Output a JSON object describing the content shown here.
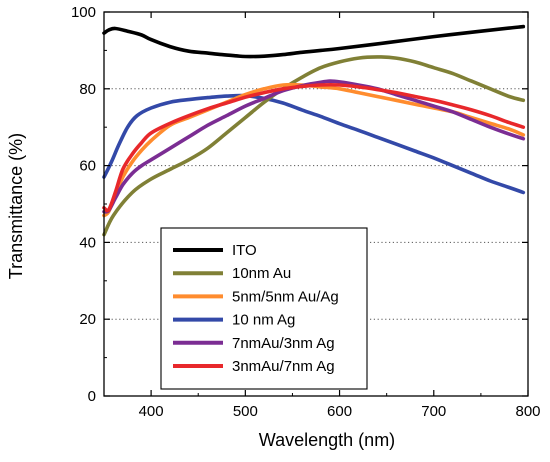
{
  "chart_data": {
    "type": "line",
    "title": "",
    "xlabel": "Wavelength (nm)",
    "ylabel": "Transmittance (%)",
    "xlim": [
      350,
      800
    ],
    "ylim": [
      0,
      100
    ],
    "x_ticks": [
      400,
      500,
      600,
      700,
      800
    ],
    "y_ticks": [
      0,
      20,
      40,
      60,
      80,
      100
    ],
    "grid": "dotted horizontal at 20, 40, 60, 80",
    "legend_position": "lower-left inside",
    "series": [
      {
        "name": "ITO",
        "color": "#000000",
        "x": [
          350,
          355,
          362,
          375,
          390,
          400,
          420,
          440,
          460,
          475,
          490,
          500,
          520,
          540,
          560,
          580,
          600,
          650,
          700,
          750,
          780,
          795
        ],
        "y": [
          94.5,
          95.3,
          95.7,
          95.0,
          94.0,
          92.8,
          91.0,
          89.8,
          89.3,
          88.9,
          88.6,
          88.4,
          88.5,
          88.9,
          89.5,
          90.0,
          90.5,
          92.0,
          93.6,
          95.0,
          95.8,
          96.2
        ]
      },
      {
        "name": "10nm Au",
        "color": "#808036",
        "x": [
          350,
          360,
          380,
          400,
          420,
          440,
          460,
          480,
          500,
          520,
          540,
          560,
          580,
          600,
          620,
          640,
          660,
          680,
          700,
          720,
          740,
          760,
          780,
          795
        ],
        "y": [
          42,
          47,
          53,
          56.5,
          59,
          61.5,
          64.5,
          68.5,
          72.5,
          76.5,
          80,
          83,
          85.5,
          87,
          88,
          88.3,
          88,
          87,
          85.5,
          84,
          82,
          80,
          78,
          77
        ]
      },
      {
        "name": "5nm/5nm Au/Ag",
        "color": "#FF8C2E",
        "x": [
          350,
          355,
          362,
          370,
          380,
          390,
          400,
          420,
          440,
          460,
          480,
          500,
          520,
          540,
          560,
          580,
          600,
          620,
          640,
          660,
          680,
          700,
          720,
          740,
          760,
          780,
          795
        ],
        "y": [
          47,
          48,
          52.5,
          57,
          61,
          64,
          66.5,
          70.5,
          72.5,
          74.5,
          76.5,
          78.5,
          80,
          81,
          81,
          80.5,
          80,
          79,
          78,
          77,
          76,
          75,
          74,
          72.5,
          71,
          69.5,
          68
        ]
      },
      {
        "name": "10 nm Ag",
        "color": "#3349A8",
        "x": [
          350,
          358,
          365,
          375,
          385,
          400,
          420,
          440,
          460,
          480,
          500,
          520,
          540,
          560,
          580,
          600,
          620,
          640,
          660,
          680,
          700,
          720,
          740,
          760,
          780,
          795
        ],
        "y": [
          57,
          61,
          65,
          70,
          73,
          75,
          76.5,
          77.2,
          77.7,
          78.1,
          78.2,
          77.5,
          76.3,
          74.5,
          72.8,
          70.9,
          69.2,
          67.4,
          65.6,
          63.8,
          62.0,
          60.0,
          58.0,
          56.0,
          54.3,
          53
        ]
      },
      {
        "name": "7nmAu/3nm Ag",
        "color": "#7B2D93",
        "x": [
          350,
          355,
          362,
          370,
          380,
          390,
          400,
          420,
          440,
          460,
          480,
          500,
          520,
          540,
          560,
          580,
          590,
          600,
          620,
          640,
          660,
          680,
          700,
          720,
          740,
          760,
          780,
          795
        ],
        "y": [
          48,
          48.3,
          51.5,
          55,
          58,
          60,
          61.5,
          64.5,
          67.5,
          70.5,
          73,
          75.5,
          77.5,
          79.5,
          80.8,
          81.7,
          82,
          81.8,
          81,
          80,
          78.5,
          77,
          75.5,
          74,
          72,
          70,
          68.2,
          67
        ]
      },
      {
        "name": "3nmAu/7nm Ag",
        "color": "#E8282B",
        "x": [
          350,
          355,
          362,
          370,
          380,
          390,
          400,
          420,
          440,
          460,
          480,
          500,
          520,
          540,
          560,
          580,
          600,
          620,
          640,
          660,
          680,
          700,
          720,
          740,
          760,
          780,
          795
        ],
        "y": [
          49,
          48.5,
          53,
          59,
          63,
          66,
          68.5,
          71,
          73,
          74.8,
          76.3,
          77.8,
          79,
          80,
          80.6,
          81,
          81,
          80.5,
          79.8,
          79,
          78,
          77,
          75.8,
          74.5,
          73,
          71.2,
          70
        ]
      }
    ]
  }
}
